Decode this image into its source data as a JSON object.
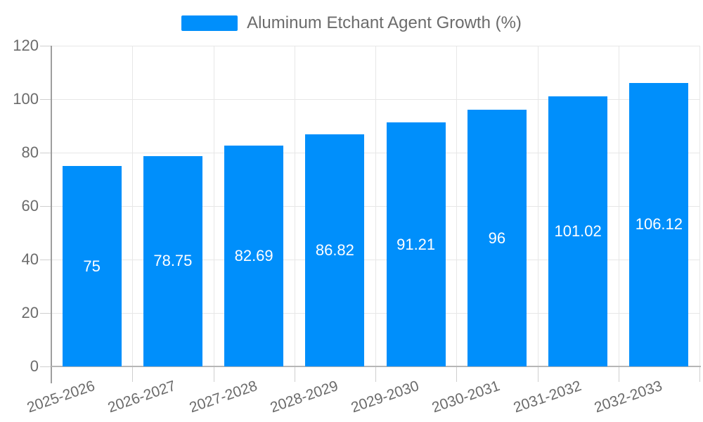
{
  "legend": {
    "label": "Aluminum Etchant Agent Growth (%)",
    "swatch_color": "#008FFB"
  },
  "chart_data": {
    "type": "bar",
    "title": "",
    "xlabel": "",
    "ylabel": "",
    "categories": [
      "2025-2026",
      "2026-2027",
      "2027-2028",
      "2028-2029",
      "2029-2030",
      "2030-2031",
      "2031-2032",
      "2032-2033"
    ],
    "series": [
      {
        "name": "Aluminum Etchant Agent Growth (%)",
        "values": [
          75,
          78.75,
          82.69,
          86.82,
          91.21,
          96,
          101.02,
          106.12
        ],
        "data_labels": [
          "75",
          "78.75",
          "82.69",
          "86.82",
          "91.21",
          "96",
          "101.02",
          "106.12"
        ]
      }
    ],
    "ylim": [
      0,
      120
    ],
    "yticks": [
      0,
      20,
      40,
      60,
      80,
      100,
      120
    ],
    "grid": true,
    "legend_position": "top",
    "colors": {
      "bar": "#008FFB",
      "grid": "#e7e7e7",
      "axis_line": "#b6b6b6",
      "yaxis_line": "#9e9e9e",
      "tick": "#cfcfcf",
      "axis_label": "#6b6b6b",
      "data_label": "#ffffff"
    }
  }
}
